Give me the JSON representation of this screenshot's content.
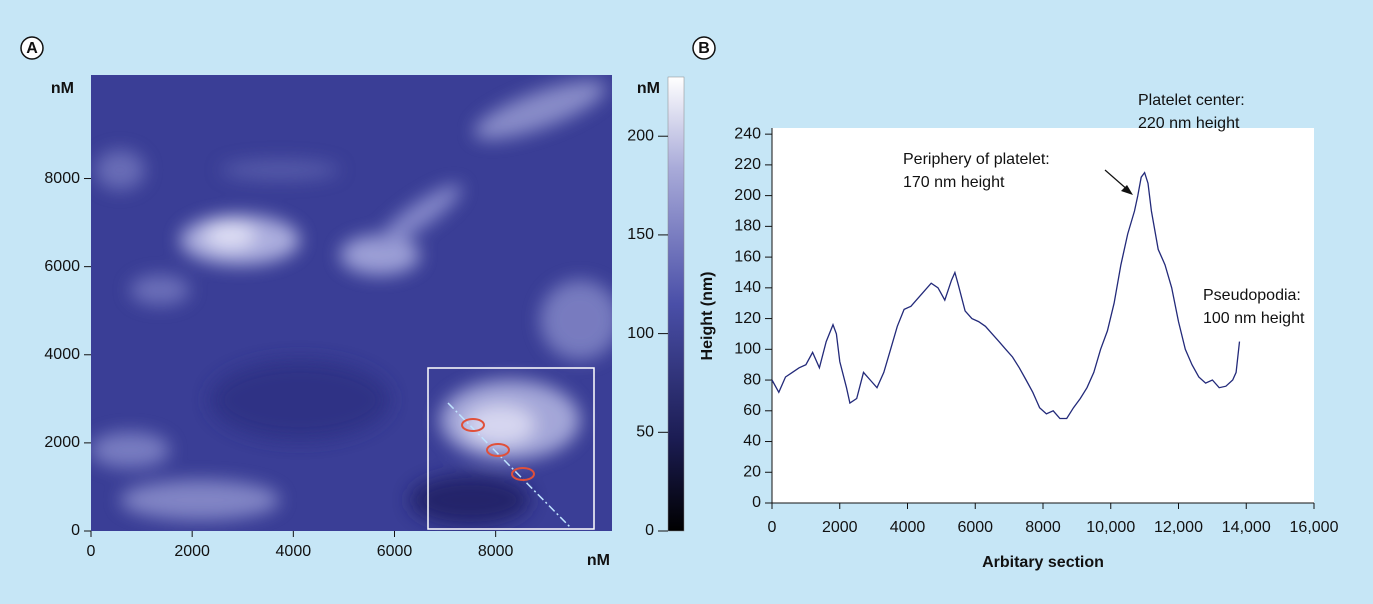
{
  "chart_data": [
    {
      "type": "heatmap",
      "panel_label": "A",
      "y_label": "nM",
      "x_label": "nM",
      "colorbar_label": "nM",
      "xlim": [
        0,
        10300
      ],
      "xticks": [
        0,
        2000,
        4000,
        6000,
        8000
      ],
      "ylim": [
        0,
        10350
      ],
      "yticks": [
        0,
        2000,
        4000,
        6000,
        8000
      ],
      "clim": [
        0,
        230
      ],
      "cticks": [
        0,
        50,
        100,
        150,
        200
      ]
    },
    {
      "type": "line",
      "panel_label": "B",
      "y_label": "Height (nm)",
      "x_label": "Arbitary section",
      "color": "#232a7a",
      "xlim": [
        0,
        16000
      ],
      "xticks": [
        0,
        2000,
        4000,
        6000,
        8000,
        {
          "value": 10000,
          "label": "10,000"
        },
        {
          "value": 12000,
          "label": "12,000"
        },
        {
          "value": 14000,
          "label": "14,000"
        },
        {
          "value": 16000,
          "label": "16,000"
        }
      ],
      "ylim": [
        0,
        244
      ],
      "yticks": [
        0,
        20,
        40,
        60,
        80,
        100,
        120,
        140,
        160,
        180,
        200,
        220,
        240
      ],
      "x": [
        0,
        200,
        400,
        600,
        800,
        1000,
        1200,
        1400,
        1600,
        1800,
        1900,
        2000,
        2200,
        2300,
        2500,
        2700,
        2900,
        3100,
        3300,
        3500,
        3700,
        3900,
        4100,
        4300,
        4500,
        4700,
        4900,
        5100,
        5300,
        5400,
        5500,
        5700,
        5900,
        6100,
        6300,
        6500,
        6700,
        6900,
        7100,
        7300,
        7500,
        7700,
        7900,
        8100,
        8300,
        8500,
        8700,
        8900,
        9100,
        9300,
        9500,
        9700,
        9900,
        10100,
        10300,
        10500,
        10700,
        10800,
        10900,
        11000,
        11100,
        11200,
        11400,
        11600,
        11800,
        12000,
        12200,
        12400,
        12600,
        12800,
        13000,
        13200,
        13400,
        13600,
        13700,
        13800
      ],
      "values": [
        80,
        72,
        82,
        85,
        88,
        90,
        98,
        88,
        105,
        116,
        110,
        92,
        75,
        65,
        68,
        85,
        80,
        75,
        85,
        100,
        115,
        126,
        128,
        133,
        138,
        143,
        140,
        132,
        145,
        150,
        142,
        125,
        120,
        118,
        115,
        110,
        105,
        100,
        95,
        88,
        80,
        72,
        62,
        58,
        60,
        55,
        55,
        62,
        68,
        75,
        85,
        100,
        112,
        130,
        155,
        175,
        190,
        200,
        212,
        215,
        208,
        190,
        165,
        155,
        140,
        118,
        100,
        90,
        82,
        78,
        80,
        75,
        76,
        80,
        85,
        105
      ],
      "annotations": [
        [
          "Platelet center:",
          "220 nm height"
        ],
        [
          "Periphery of platelet:",
          "170 nm height"
        ],
        [
          "Pseudopodia:",
          "100 nm height"
        ]
      ]
    }
  ]
}
